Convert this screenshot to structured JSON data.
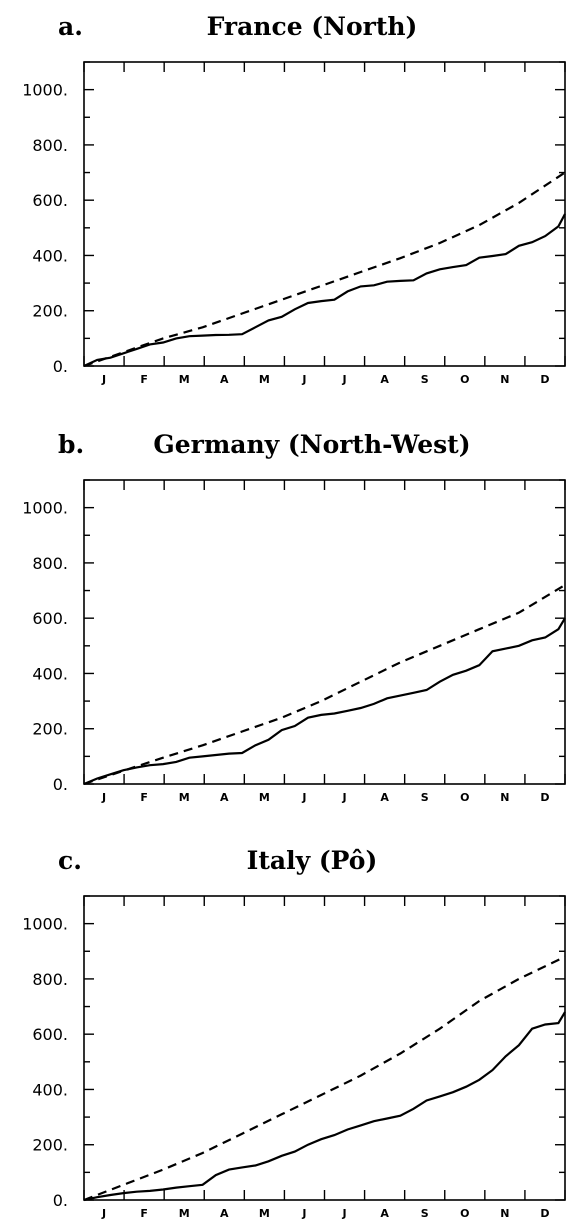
{
  "chart_data": [
    {
      "type": "line",
      "panel_letter": "a.",
      "title": "France (North)",
      "months": [
        "J",
        "F",
        "M",
        "A",
        "M",
        "J",
        "J",
        "A",
        "S",
        "O",
        "N",
        "D"
      ],
      "y_ticks": [
        "0.",
        "200.",
        "400.",
        "600.",
        "800.",
        "1000."
      ],
      "ylim": [
        0,
        1100
      ],
      "xlim": [
        0,
        365
      ],
      "series": [
        {
          "style": "solid",
          "x": [
            0,
            10,
            20,
            30,
            40,
            50,
            60,
            70,
            80,
            90,
            100,
            110,
            120,
            130,
            140,
            150,
            160,
            170,
            180,
            190,
            200,
            210,
            220,
            230,
            240,
            250,
            260,
            270,
            280,
            290,
            300,
            310,
            320,
            330,
            340,
            350,
            360,
            365
          ],
          "y": [
            0,
            22,
            30,
            46,
            62,
            78,
            85,
            100,
            108,
            110,
            112,
            113,
            115,
            140,
            165,
            178,
            205,
            228,
            235,
            240,
            270,
            288,
            292,
            305,
            308,
            310,
            335,
            350,
            358,
            365,
            392,
            398,
            405,
            435,
            448,
            470,
            505,
            550
          ]
        },
        {
          "style": "dashed",
          "x": [
            0,
            30,
            60,
            90,
            120,
            150,
            180,
            210,
            240,
            270,
            300,
            330,
            365
          ],
          "y": [
            0,
            50,
            100,
            140,
            190,
            240,
            290,
            340,
            390,
            445,
            510,
            590,
            700
          ]
        }
      ]
    },
    {
      "type": "line",
      "panel_letter": "b.",
      "title": "Germany (North-West)",
      "months": [
        "J",
        "F",
        "M",
        "A",
        "M",
        "J",
        "J",
        "A",
        "S",
        "O",
        "N",
        "D"
      ],
      "y_ticks": [
        "0.",
        "200.",
        "400.",
        "600.",
        "800.",
        "1000."
      ],
      "ylim": [
        0,
        1100
      ],
      "xlim": [
        0,
        365
      ],
      "series": [
        {
          "style": "solid",
          "x": [
            0,
            10,
            20,
            30,
            40,
            50,
            60,
            70,
            80,
            90,
            100,
            110,
            120,
            130,
            140,
            150,
            160,
            170,
            180,
            190,
            200,
            210,
            220,
            230,
            240,
            250,
            260,
            270,
            280,
            290,
            300,
            310,
            320,
            330,
            340,
            350,
            360,
            365
          ],
          "y": [
            0,
            20,
            35,
            50,
            60,
            68,
            72,
            80,
            95,
            100,
            105,
            110,
            112,
            140,
            160,
            195,
            210,
            240,
            250,
            255,
            265,
            275,
            290,
            310,
            320,
            330,
            340,
            370,
            395,
            410,
            430,
            480,
            490,
            500,
            520,
            530,
            560,
            600
          ]
        },
        {
          "style": "dashed",
          "x": [
            0,
            30,
            60,
            90,
            120,
            150,
            180,
            210,
            240,
            270,
            300,
            330,
            365
          ],
          "y": [
            0,
            48,
            95,
            140,
            190,
            240,
            300,
            370,
            440,
            500,
            560,
            620,
            720
          ]
        }
      ]
    },
    {
      "type": "line",
      "panel_letter": "c.",
      "title": "Italy (Pô)",
      "months": [
        "J",
        "F",
        "M",
        "A",
        "M",
        "J",
        "J",
        "A",
        "S",
        "O",
        "N",
        "D"
      ],
      "y_ticks": [
        "0.",
        "200.",
        "400.",
        "600.",
        "800.",
        "1000."
      ],
      "ylim": [
        0,
        1100
      ],
      "xlim": [
        0,
        365
      ],
      "series": [
        {
          "style": "solid",
          "x": [
            0,
            10,
            20,
            30,
            40,
            50,
            60,
            70,
            80,
            90,
            100,
            110,
            120,
            130,
            140,
            150,
            160,
            170,
            180,
            190,
            200,
            210,
            220,
            230,
            240,
            250,
            260,
            270,
            280,
            290,
            300,
            310,
            320,
            330,
            340,
            350,
            360,
            365
          ],
          "y": [
            0,
            10,
            18,
            25,
            30,
            33,
            38,
            45,
            50,
            55,
            90,
            110,
            118,
            125,
            140,
            160,
            175,
            200,
            220,
            235,
            255,
            270,
            285,
            295,
            305,
            330,
            360,
            375,
            390,
            410,
            435,
            470,
            520,
            560,
            620,
            635,
            640,
            680
          ]
        },
        {
          "style": "dashed",
          "x": [
            0,
            30,
            60,
            90,
            120,
            150,
            180,
            210,
            240,
            270,
            300,
            330,
            365
          ],
          "y": [
            0,
            55,
            110,
            170,
            240,
            310,
            380,
            450,
            530,
            620,
            720,
            800,
            880
          ]
        }
      ]
    }
  ]
}
